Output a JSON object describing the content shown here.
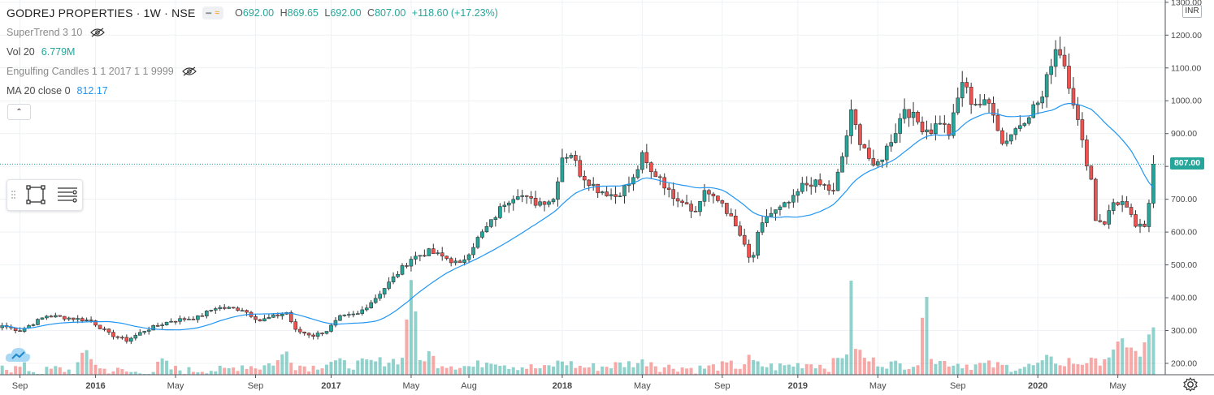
{
  "header": {
    "symbol": "GODREJ PROPERTIES · 1W · NSE",
    "ohlc": {
      "open_label": "O",
      "open": "692.00",
      "high_label": "H",
      "high": "869.65",
      "low_label": "L",
      "low": "692.00",
      "close_label": "C",
      "close": "807.00",
      "change": "+118.60 (+17.23%)"
    }
  },
  "indicators": [
    {
      "name": "SuperTrend 3 10",
      "value": "",
      "icon": "eye-off-icon"
    },
    {
      "name": "Vol 20",
      "value": "6.779M",
      "value_color": "#26a69a"
    },
    {
      "name": "Engulfing Candles 1 1 2017 1 1 9999",
      "value": "",
      "icon": "eye-off-icon"
    },
    {
      "name": "MA 20 close 0",
      "value": "812.17",
      "value_color": "#2196f3"
    }
  ],
  "currency_badge": "INR",
  "last_price_badge": "807.00",
  "colors": {
    "up": "#26a69a",
    "down": "#ef5350",
    "ma": "#2196f3",
    "grid": "#eff1f4",
    "axis_text": "#4a4a4a"
  },
  "chart_data": {
    "type": "candlestick",
    "symbol": "GODREJ PROPERTIES",
    "interval": "1W",
    "exchange": "NSE",
    "ylim": [
      175,
      1300
    ],
    "y_ticks": [
      200,
      300,
      400,
      500,
      600,
      700,
      800,
      900,
      1000,
      1100,
      1200,
      1300
    ],
    "y_tick_labels": [
      "200.00",
      "300.00",
      "400.00",
      "500.00",
      "600.00",
      "700.00",
      "800.00",
      "900.00",
      "1000.00",
      "1100.00",
      "1200.00",
      "1300.00"
    ],
    "x_ticks": [
      {
        "label": "Sep",
        "week": 4
      },
      {
        "label": "2016",
        "week": 21
      },
      {
        "label": "May",
        "week": 39
      },
      {
        "label": "Sep",
        "week": 57
      },
      {
        "label": "2017",
        "week": 74
      },
      {
        "label": "May",
        "week": 92
      },
      {
        "label": "Aug",
        "week": 105
      },
      {
        "label": "2018",
        "week": 126
      },
      {
        "label": "May",
        "week": 144
      },
      {
        "label": "Sep",
        "week": 162
      },
      {
        "label": "2019",
        "week": 179
      },
      {
        "label": "May",
        "week": 197
      },
      {
        "label": "Sep",
        "week": 215
      },
      {
        "label": "2020",
        "week": 233
      },
      {
        "label": "May",
        "week": 251
      }
    ],
    "last_price": 807.0,
    "close_anchors": [
      [
        0,
        315
      ],
      [
        4,
        300
      ],
      [
        10,
        345
      ],
      [
        14,
        340
      ],
      [
        20,
        330
      ],
      [
        24,
        290
      ],
      [
        28,
        270
      ],
      [
        32,
        300
      ],
      [
        38,
        330
      ],
      [
        44,
        340
      ],
      [
        48,
        370
      ],
      [
        54,
        365
      ],
      [
        58,
        330
      ],
      [
        64,
        355
      ],
      [
        66,
        300
      ],
      [
        70,
        285
      ],
      [
        73,
        300
      ],
      [
        76,
        340
      ],
      [
        80,
        350
      ],
      [
        84,
        400
      ],
      [
        88,
        460
      ],
      [
        92,
        520
      ],
      [
        96,
        540
      ],
      [
        100,
        520
      ],
      [
        103,
        500
      ],
      [
        107,
        580
      ],
      [
        110,
        630
      ],
      [
        113,
        690
      ],
      [
        116,
        720
      ],
      [
        118,
        700
      ],
      [
        120,
        690
      ],
      [
        124,
        700
      ],
      [
        126,
        830
      ],
      [
        128,
        840
      ],
      [
        130,
        780
      ],
      [
        134,
        730
      ],
      [
        138,
        710
      ],
      [
        142,
        760
      ],
      [
        144,
        830
      ],
      [
        146,
        780
      ],
      [
        148,
        770
      ],
      [
        150,
        720
      ],
      [
        154,
        690
      ],
      [
        156,
        660
      ],
      [
        158,
        730
      ],
      [
        160,
        700
      ],
      [
        162,
        690
      ],
      [
        164,
        640
      ],
      [
        166,
        590
      ],
      [
        168,
        520
      ],
      [
        169,
        530
      ],
      [
        170,
        590
      ],
      [
        172,
        650
      ],
      [
        175,
        670
      ],
      [
        178,
        700
      ],
      [
        180,
        740
      ],
      [
        182,
        750
      ],
      [
        185,
        740
      ],
      [
        187,
        720
      ],
      [
        189,
        830
      ],
      [
        191,
        960
      ],
      [
        193,
        880
      ],
      [
        194,
        860
      ],
      [
        196,
        790
      ],
      [
        198,
        830
      ],
      [
        201,
        910
      ],
      [
        203,
        980
      ],
      [
        205,
        950
      ],
      [
        207,
        920
      ],
      [
        209,
        910
      ],
      [
        211,
        940
      ],
      [
        213,
        900
      ],
      [
        214,
        950
      ],
      [
        216,
        1060
      ],
      [
        218,
        1000
      ],
      [
        220,
        990
      ],
      [
        222,
        990
      ],
      [
        223,
        970
      ],
      [
        225,
        870
      ],
      [
        227,
        900
      ],
      [
        229,
        930
      ],
      [
        232,
        980
      ],
      [
        234,
        1010
      ],
      [
        236,
        1120
      ],
      [
        237,
        1160
      ],
      [
        238,
        1150
      ],
      [
        239,
        1110
      ],
      [
        241,
        1000
      ],
      [
        243,
        870
      ],
      [
        245,
        760
      ],
      [
        246,
        640
      ],
      [
        248,
        630
      ],
      [
        250,
        690
      ],
      [
        252,
        690
      ],
      [
        255,
        620
      ],
      [
        257,
        610
      ],
      [
        258,
        690
      ],
      [
        259,
        807
      ]
    ],
    "volume_anchors": [
      [
        0,
        230
      ],
      [
        1,
        215
      ],
      [
        2,
        210
      ],
      [
        5,
        215
      ],
      [
        8,
        200
      ],
      [
        12,
        210
      ],
      [
        16,
        205
      ],
      [
        19,
        255
      ],
      [
        22,
        210
      ],
      [
        26,
        205
      ],
      [
        30,
        200
      ],
      [
        34,
        205
      ],
      [
        36,
        230
      ],
      [
        38,
        210
      ],
      [
        42,
        205
      ],
      [
        46,
        210
      ],
      [
        50,
        205
      ],
      [
        54,
        220
      ],
      [
        58,
        215
      ],
      [
        62,
        230
      ],
      [
        64,
        255
      ],
      [
        66,
        220
      ],
      [
        70,
        215
      ],
      [
        74,
        230
      ],
      [
        78,
        220
      ],
      [
        82,
        225
      ],
      [
        86,
        230
      ],
      [
        90,
        235
      ],
      [
        92,
        450
      ],
      [
        94,
        230
      ],
      [
        96,
        250
      ],
      [
        98,
        225
      ],
      [
        102,
        220
      ],
      [
        106,
        215
      ],
      [
        110,
        235
      ],
      [
        114,
        220
      ],
      [
        118,
        215
      ],
      [
        122,
        210
      ],
      [
        126,
        230
      ],
      [
        130,
        215
      ],
      [
        134,
        215
      ],
      [
        138,
        220
      ],
      [
        142,
        225
      ],
      [
        146,
        230
      ],
      [
        148,
        215
      ],
      [
        152,
        215
      ],
      [
        156,
        210
      ],
      [
        160,
        215
      ],
      [
        164,
        220
      ],
      [
        166,
        215
      ],
      [
        168,
        235
      ],
      [
        170,
        220
      ],
      [
        174,
        215
      ],
      [
        178,
        220
      ],
      [
        182,
        225
      ],
      [
        186,
        215
      ],
      [
        190,
        255
      ],
      [
        191,
        415
      ],
      [
        192,
        270
      ],
      [
        194,
        235
      ],
      [
        198,
        225
      ],
      [
        202,
        220
      ],
      [
        206,
        225
      ],
      [
        208,
        420
      ],
      [
        209,
        250
      ],
      [
        210,
        230
      ],
      [
        214,
        225
      ],
      [
        218,
        220
      ],
      [
        222,
        220
      ],
      [
        226,
        215
      ],
      [
        230,
        215
      ],
      [
        234,
        220
      ],
      [
        236,
        250
      ],
      [
        238,
        215
      ],
      [
        240,
        230
      ],
      [
        242,
        225
      ],
      [
        244,
        230
      ],
      [
        246,
        225
      ],
      [
        248,
        240
      ],
      [
        250,
        250
      ],
      [
        252,
        280
      ],
      [
        254,
        270
      ],
      [
        255,
        250
      ],
      [
        256,
        240
      ],
      [
        259,
        325
      ]
    ],
    "ma": {
      "name": "MA 20 close 0",
      "period": 20,
      "value": 812.17
    },
    "volume": {
      "name": "Vol 20",
      "value": "6.779M"
    }
  }
}
